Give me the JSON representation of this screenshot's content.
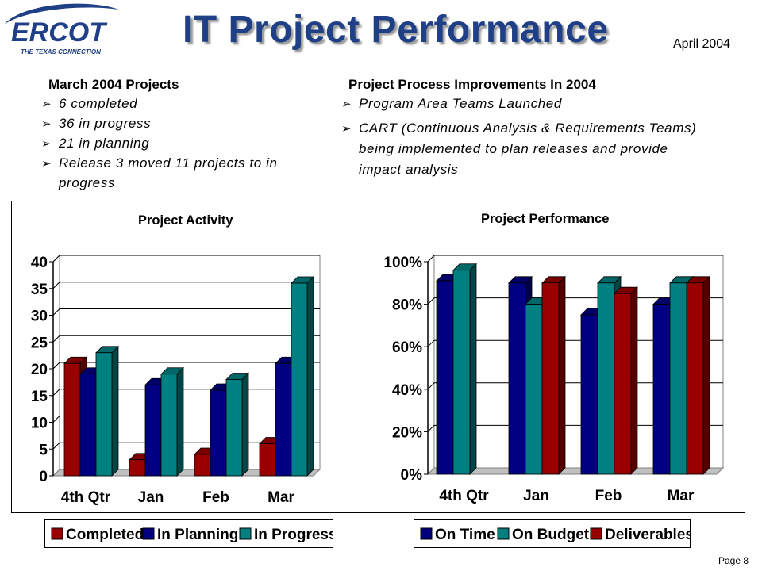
{
  "header": {
    "logo_text": "ERCOT",
    "logo_tagline": "THE TEXAS CONNECTION",
    "title": "IT Project Performance",
    "date": "April 2004"
  },
  "left_column": {
    "heading": "March 2004 Projects",
    "items": [
      "6 completed",
      "36 in progress",
      "21 in planning",
      "Release 3 moved 11 projects to in progress"
    ]
  },
  "right_column": {
    "heading": "Project Process Improvements In 2004",
    "items": [
      "Program Area Teams Launched",
      "CART (Continuous Analysis & Requirements Teams) being implemented to plan releases and provide impact analysis"
    ]
  },
  "bullet_icon": "arrow-bullet-icon",
  "bullet_glyph": "➢",
  "footer": {
    "page": "Page 8"
  },
  "chart_data": [
    {
      "type": "bar",
      "title": "Project Activity",
      "categories": [
        "4th Qtr",
        "Jan",
        "Feb",
        "Mar"
      ],
      "series": [
        {
          "name": "Completed",
          "color": "#990000",
          "values": [
            21,
            3,
            4,
            6
          ]
        },
        {
          "name": "In Planning",
          "color": "#000080",
          "values": [
            19,
            17,
            16,
            21
          ]
        },
        {
          "name": "In Progress",
          "color": "#008080",
          "values": [
            23,
            19,
            18,
            36
          ]
        }
      ],
      "yticks": [
        "0",
        "5",
        "10",
        "15",
        "20",
        "25",
        "30",
        "35",
        "40"
      ],
      "ylim": [
        0,
        40
      ],
      "grid": true,
      "legend_position": "bottom"
    },
    {
      "type": "bar",
      "title": "Project Performance",
      "categories": [
        "4th Qtr",
        "Jan",
        "Feb",
        "Mar"
      ],
      "series": [
        {
          "name": "On Time",
          "color": "#000080",
          "values": [
            91,
            90,
            75,
            80
          ]
        },
        {
          "name": "On Budget",
          "color": "#008080",
          "values": [
            96,
            80,
            90,
            90
          ]
        },
        {
          "name": "Deliverables",
          "color": "#990000",
          "values": [
            0,
            90,
            85,
            90
          ]
        }
      ],
      "yticks": [
        "0%",
        "20%",
        "40%",
        "60%",
        "80%",
        "100%"
      ],
      "ylim": [
        0,
        100
      ],
      "grid": true,
      "legend_position": "bottom"
    }
  ]
}
